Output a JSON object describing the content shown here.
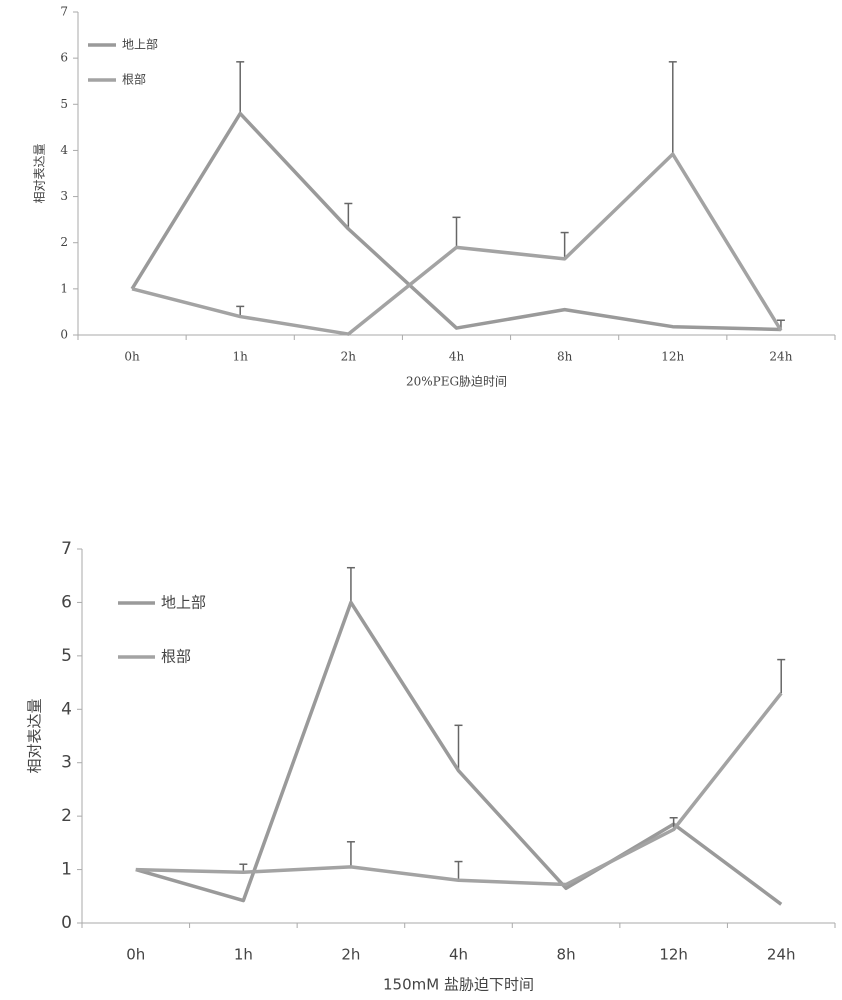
{
  "chart_data": [
    {
      "type": "line",
      "x_label": "20%PEG胁迫时间",
      "y_label": "相对表达量",
      "categories": [
        "0h",
        "1h",
        "2h",
        "4h",
        "8h",
        "12h",
        "24h"
      ],
      "series": [
        {
          "name": "地上部",
          "color": "#9a9a9a",
          "values": [
            1,
            4.8,
            2.3,
            0.15,
            0.55,
            0.18,
            0.12
          ],
          "errors": [
            null,
            1.12,
            0.55,
            null,
            null,
            null,
            null
          ]
        },
        {
          "name": "根部",
          "color": "#a3a3a3",
          "values": [
            1,
            0.4,
            0.02,
            1.9,
            1.65,
            3.92,
            0.1
          ],
          "errors": [
            null,
            0.22,
            null,
            0.65,
            0.57,
            2.0,
            0.22
          ]
        }
      ],
      "ylim": [
        0,
        7
      ],
      "yticks": [
        0,
        1,
        2,
        3,
        4,
        5,
        6,
        7
      ]
    },
    {
      "type": "line",
      "x_label": "150mM 盐胁迫下时间",
      "y_label": "相对表达量",
      "categories": [
        "0h",
        "1h",
        "2h",
        "4h",
        "8h",
        "12h",
        "24h"
      ],
      "series": [
        {
          "name": "地上部",
          "color": "#9a9a9a",
          "values": [
            1,
            0.42,
            6.0,
            2.85,
            0.65,
            1.85,
            0.35
          ],
          "errors": [
            null,
            null,
            0.65,
            0.85,
            null,
            null,
            null
          ]
        },
        {
          "name": "根部",
          "color": "#a3a3a3",
          "values": [
            1,
            0.95,
            1.05,
            0.8,
            0.72,
            1.75,
            4.3
          ],
          "errors": [
            null,
            0.15,
            0.47,
            0.35,
            null,
            0.22,
            0.63
          ]
        }
      ],
      "ylim": [
        0,
        7
      ],
      "yticks": [
        0,
        1,
        2,
        3,
        4,
        5,
        6,
        7
      ]
    }
  ]
}
